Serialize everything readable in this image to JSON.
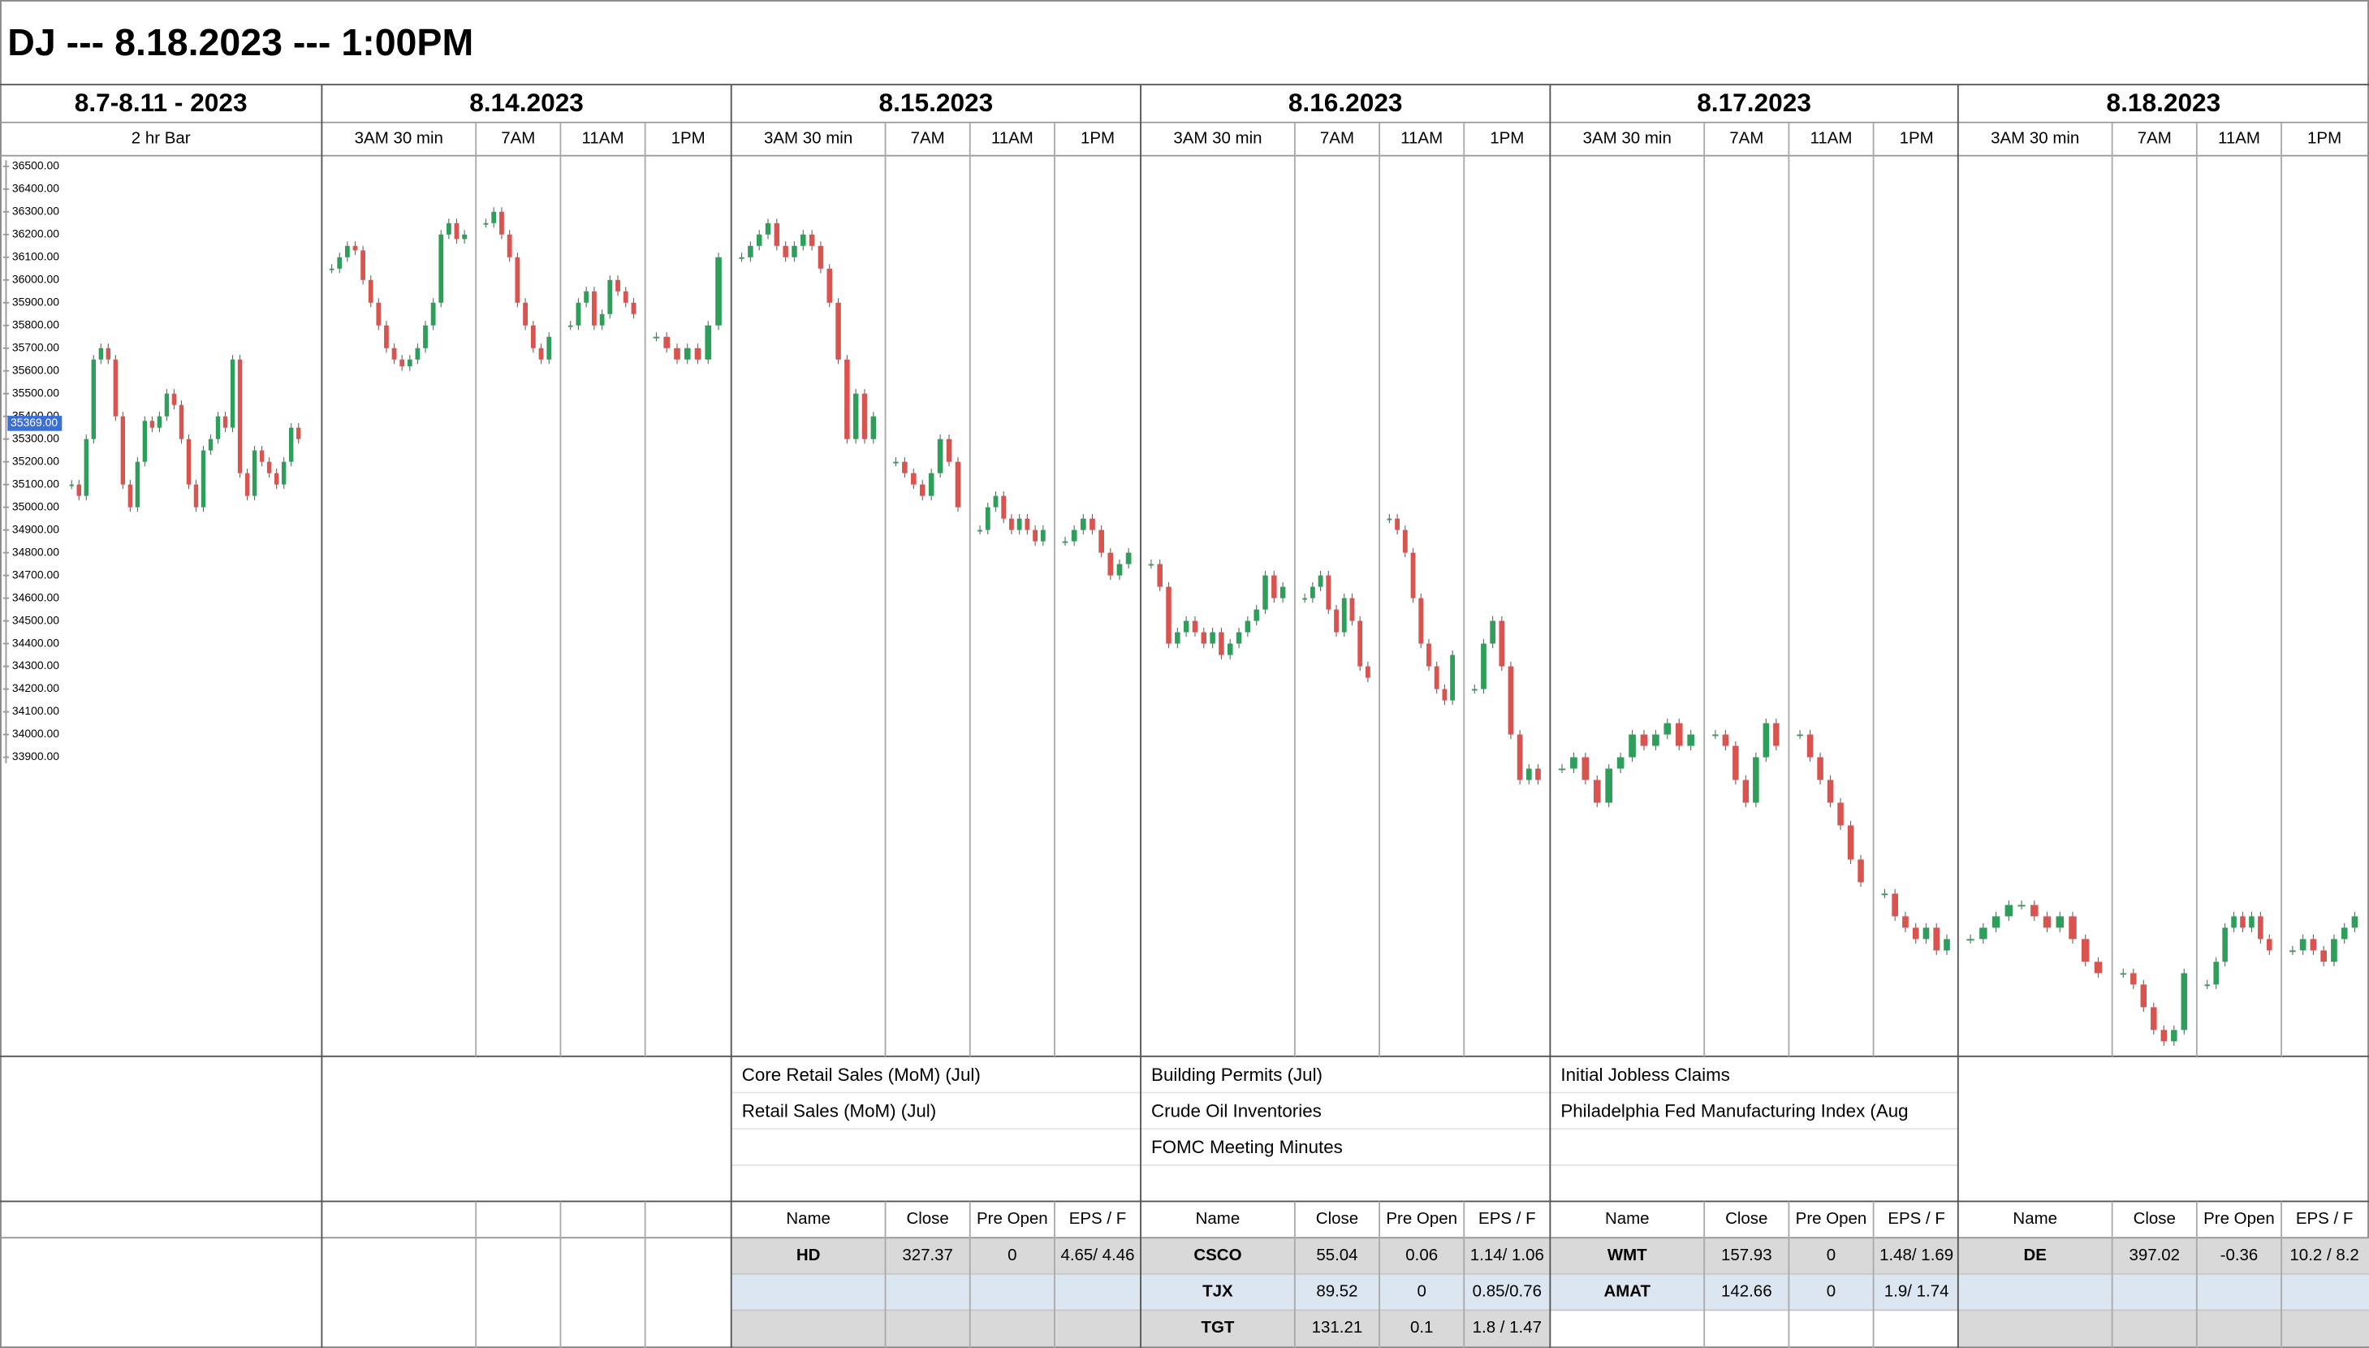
{
  "header": {
    "title": "DJ --- 8.18.2023 --- 1:00PM"
  },
  "columns": [
    {
      "date": "8.7-8.11 - 2023",
      "sessions": [
        "2 hr Bar"
      ]
    },
    {
      "date": "8.14.2023",
      "sessions": [
        "3AM 30 min",
        "7AM",
        "11AM",
        "1PM"
      ]
    },
    {
      "date": "8.15.2023",
      "sessions": [
        "3AM 30 min",
        "7AM",
        "11AM",
        "1PM"
      ]
    },
    {
      "date": "8.16.2023",
      "sessions": [
        "3AM 30 min",
        "7AM",
        "11AM",
        "1PM"
      ]
    },
    {
      "date": "8.17.2023",
      "sessions": [
        "3AM 30 min",
        "7AM",
        "11AM",
        "1PM"
      ]
    },
    {
      "date": "8.18.2023",
      "sessions": [
        "3AM 30 min",
        "7AM",
        "11AM",
        "1PM"
      ]
    }
  ],
  "chart_data": {
    "type": "candlestick",
    "ylim": [
      32584,
      36547
    ],
    "yticks": [
      {
        "value": 36500,
        "label": "36500.00"
      },
      {
        "value": 36400,
        "label": "36400.00"
      },
      {
        "value": 36300,
        "label": "36300.00"
      },
      {
        "value": 36200,
        "label": "36200.00"
      },
      {
        "value": 36100,
        "label": "36100.00"
      },
      {
        "value": 36000,
        "label": "36000.00"
      },
      {
        "value": 35900,
        "label": "35900.00"
      },
      {
        "value": 35800,
        "label": "35800.00"
      },
      {
        "value": 35700,
        "label": "35700.00"
      },
      {
        "value": 35600,
        "label": "35600.00"
      },
      {
        "value": 35500,
        "label": "35500.00"
      },
      {
        "value": 35400,
        "label": "35400.00"
      },
      {
        "value": 35300,
        "label": "35300.00"
      },
      {
        "value": 35200,
        "label": "35200.00"
      },
      {
        "value": 35100,
        "label": "35100.00"
      },
      {
        "value": 35000,
        "label": "35000.00"
      },
      {
        "value": 34900,
        "label": "34900.00"
      },
      {
        "value": 34800,
        "label": "34800.00"
      },
      {
        "value": 34700,
        "label": "34700.00"
      },
      {
        "value": 34600,
        "label": "34600.00"
      },
      {
        "value": 34500,
        "label": "34500.00"
      },
      {
        "value": 34400,
        "label": "34400.00"
      },
      {
        "value": 34300,
        "label": "34300.00"
      },
      {
        "value": 34200,
        "label": "34200.00"
      },
      {
        "value": 34100,
        "label": "34100.00"
      },
      {
        "value": 34000,
        "label": "34000.00"
      },
      {
        "value": 33900,
        "label": "33900.00"
      }
    ],
    "price_label": {
      "value": 35369,
      "label": "35369.00"
    },
    "up_color": "#2e9e5b",
    "down_color": "#d9534f",
    "panels": [
      {
        "values": [
          35100,
          35050,
          35300,
          35650,
          35700,
          35650,
          35400,
          35100,
          35000,
          35200,
          35380,
          35350,
          35400,
          35500,
          35450,
          35300,
          35100,
          35000,
          35250,
          35300,
          35400,
          35350,
          35650,
          35150,
          35050,
          35250,
          35200,
          35150,
          35100,
          35200,
          35350,
          35300
        ]
      },
      {
        "values": [
          36050,
          36100,
          36150,
          36130,
          36000,
          35900,
          35800,
          35700,
          35650,
          35620,
          35650,
          35700,
          35800,
          35900,
          36200,
          36250,
          36180,
          36200
        ]
      },
      {
        "values": [
          36250,
          36300,
          36200,
          36100,
          35900,
          35800,
          35700,
          35650,
          35750
        ]
      },
      {
        "values": [
          35800,
          35900,
          35950,
          35800,
          35850,
          36000,
          35950,
          35900,
          35850
        ]
      },
      {
        "values": [
          35750,
          35700,
          35650,
          35700,
          35650,
          35800,
          36100
        ]
      },
      {
        "values": [
          36100,
          36150,
          36200,
          36250,
          36150,
          36100,
          36150,
          36200,
          36150,
          36050,
          35900,
          35650,
          35300,
          35500,
          35300,
          35400
        ]
      },
      {
        "values": [
          35200,
          35150,
          35100,
          35050,
          35150,
          35300,
          35200,
          35000
        ]
      },
      {
        "values": [
          34900,
          35000,
          35050,
          34950,
          34900,
          34950,
          34900,
          34850,
          34900
        ]
      },
      {
        "values": [
          34850,
          34900,
          34950,
          34900,
          34800,
          34700,
          34750,
          34800
        ]
      },
      {
        "values": [
          34750,
          34650,
          34400,
          34450,
          34500,
          34450,
          34400,
          34450,
          34350,
          34400,
          34450,
          34500,
          34550,
          34700,
          34600,
          34650
        ]
      },
      {
        "values": [
          34600,
          34650,
          34700,
          34550,
          34450,
          34600,
          34500,
          34300,
          34250
        ]
      },
      {
        "values": [
          34950,
          34900,
          34800,
          34600,
          34400,
          34300,
          34200,
          34150,
          34350
        ]
      },
      {
        "values": [
          34200,
          34400,
          34500,
          34300,
          34000,
          33800,
          33850,
          33800
        ]
      },
      {
        "values": [
          33850,
          33900,
          33800,
          33700,
          33850,
          33900,
          34000,
          33950,
          34000,
          34050,
          33950,
          34000
        ]
      },
      {
        "values": [
          34000,
          33950,
          33800,
          33700,
          33900,
          34050,
          33950
        ]
      },
      {
        "values": [
          34000,
          33900,
          33800,
          33700,
          33600,
          33450,
          33350
        ]
      },
      {
        "values": [
          33300,
          33200,
          33150,
          33100,
          33150,
          33050,
          33100
        ]
      },
      {
        "values": [
          33100,
          33150,
          33200,
          33250,
          33250,
          33200,
          33150,
          33200,
          33100,
          33000,
          32950
        ]
      },
      {
        "values": [
          32950,
          32900,
          32800,
          32700,
          32650,
          32700,
          32950
        ]
      },
      {
        "values": [
          32900,
          33000,
          33150,
          33200,
          33150,
          33200,
          33100,
          33050
        ]
      },
      {
        "values": [
          33050,
          33100,
          33050,
          33000,
          33100,
          33150,
          33200
        ]
      }
    ]
  },
  "events": [
    [],
    [],
    [
      "Core Retail Sales (MoM) (Jul)",
      "Retail Sales (MoM) (Jul)"
    ],
    [
      "Building Permits (Jul)",
      "Crude Oil Inventories",
      "FOMC Meeting Minutes"
    ],
    [
      "Initial Jobless Claims",
      "Philadelphia Fed Manufacturing Index (Aug"
    ],
    []
  ],
  "earnings": {
    "headers": [
      "Name",
      "Close",
      "Pre Open",
      "EPS / F"
    ],
    "days": [
      [],
      [],
      [
        [
          "HD",
          327.37,
          0,
          "4.65/ 4.46"
        ]
      ],
      [
        [
          "CSCO",
          55.04,
          0.06,
          "1.14/ 1.06"
        ],
        [
          "TJX",
          89.52,
          0,
          "0.85/0.76"
        ],
        [
          "TGT",
          131.21,
          0.1,
          "1.8 / 1.47"
        ]
      ],
      [
        [
          "WMT",
          157.93,
          0,
          "1.48/ 1.69"
        ],
        [
          "AMAT",
          142.66,
          0,
          "1.9/ 1.74"
        ]
      ],
      [
        [
          "DE",
          397.02,
          -0.36,
          "10.2 / 8.2"
        ]
      ]
    ]
  }
}
